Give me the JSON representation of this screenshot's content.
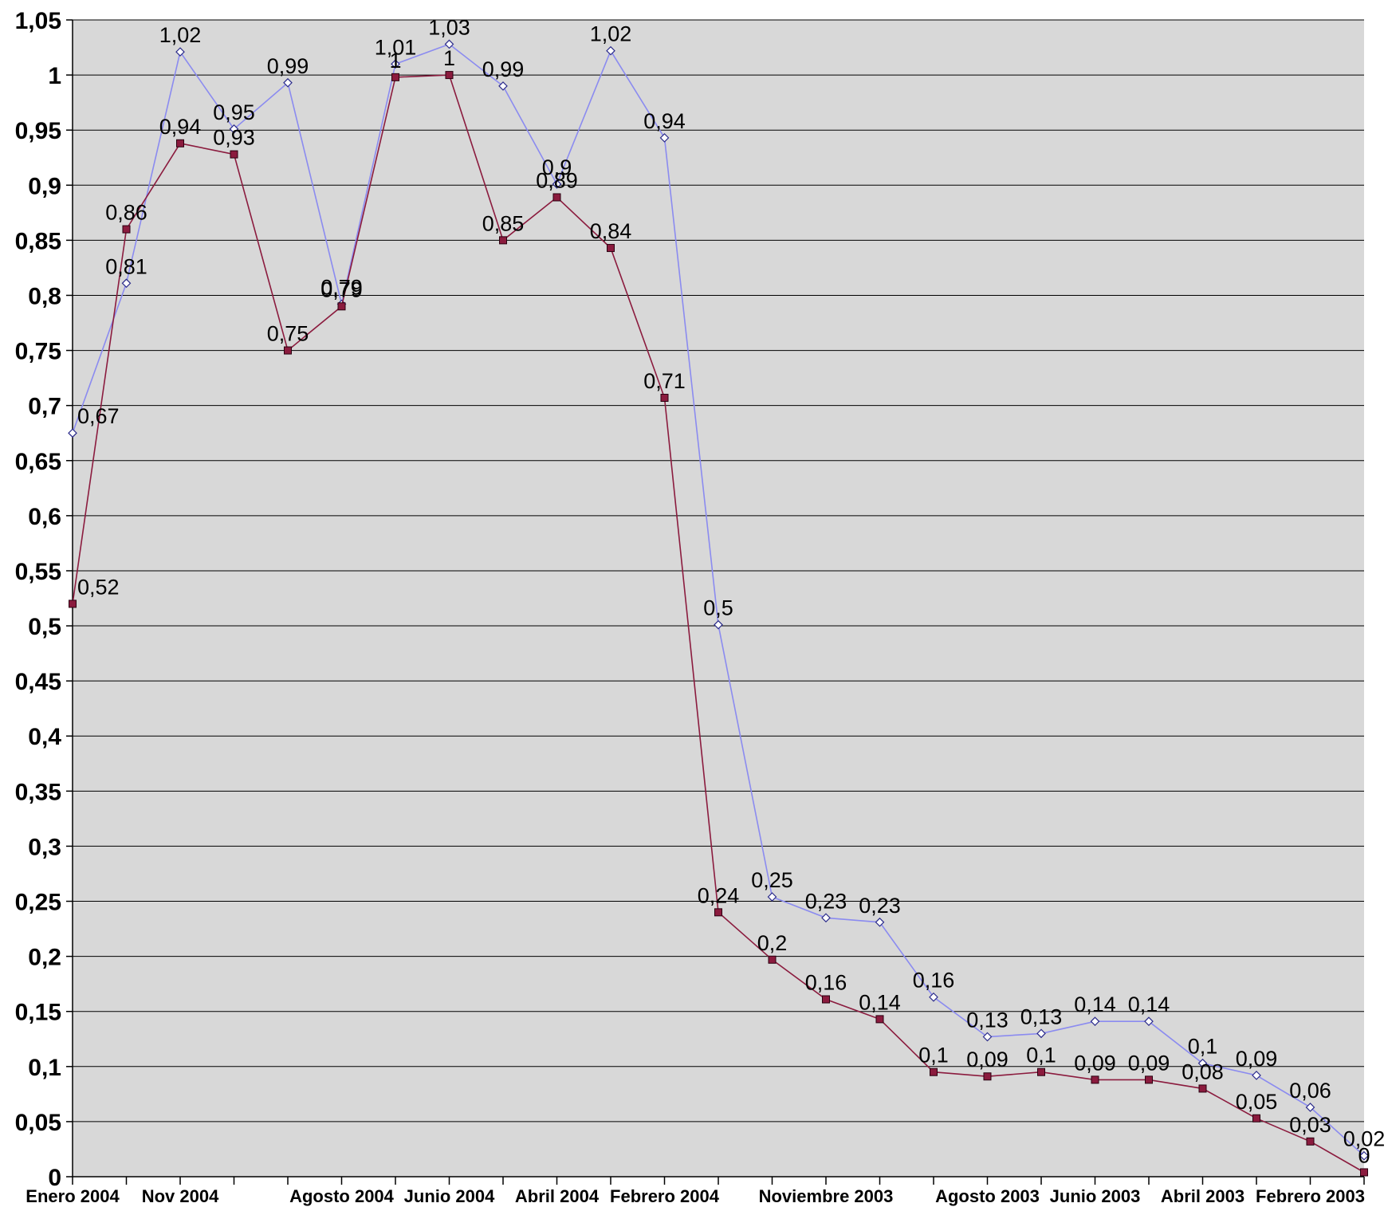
{
  "colors": {
    "plot_background": "#d8d8d8",
    "gridline": "#000000",
    "series_blue": "#8b8bf0",
    "series_red": "#8b1b3e"
  },
  "chart_data": {
    "type": "line",
    "title": "",
    "xlabel": "",
    "ylabel": "",
    "ylim": [
      0,
      1.05
    ],
    "y_ticks": [
      "0",
      "0,05",
      "0,1",
      "0,15",
      "0,2",
      "0,25",
      "0,3",
      "0,35",
      "0,4",
      "0,45",
      "0,5",
      "0,55",
      "0,6",
      "0,65",
      "0,7",
      "0,75",
      "0,8",
      "0,85",
      "0,9",
      "0,95",
      "1",
      "1,05"
    ],
    "x_tick_labels": [
      {
        "index": 0,
        "text": "Enero 2004"
      },
      {
        "index": 2,
        "text": "Nov 2004"
      },
      {
        "index": 5,
        "text": "Agosto 2004"
      },
      {
        "index": 7,
        "text": "Junio 2004"
      },
      {
        "index": 9,
        "text": "Abril 2004"
      },
      {
        "index": 11,
        "text": "Febrero 2004"
      },
      {
        "index": 14,
        "text": "Noviembre 2003"
      },
      {
        "index": 17,
        "text": "Agosto 2003"
      },
      {
        "index": 19,
        "text": "Junio 2003"
      },
      {
        "index": 21,
        "text": "Abril 2003"
      },
      {
        "index": 23,
        "text": "Febrero 2003"
      }
    ],
    "point_count": 25,
    "grid": true,
    "legend": "none",
    "series": [
      {
        "color": "#8b8bf0",
        "marker": "diamond",
        "values": [
          0.675,
          0.811,
          1.021,
          0.951,
          0.993,
          0.792,
          1.01,
          1.028,
          0.99,
          0.901,
          1.022,
          0.943,
          0.501,
          0.254,
          0.235,
          0.231,
          0.163,
          0.127,
          0.13,
          0.141,
          0.141,
          0.103,
          0.092,
          0.063,
          0.019
        ],
        "labels": [
          "0,67",
          "0,81",
          "1,02",
          "0,95",
          "0,99",
          "0,79",
          "1,01",
          "1,03",
          "0,99",
          "0,9",
          "1,02",
          "0,94",
          "0,5",
          "0,25",
          "0,23",
          "0,23",
          "0,16",
          "0,13",
          "0,13",
          "0,14",
          "0,14",
          "0,1",
          "0,09",
          "0,06",
          "0,02"
        ]
      },
      {
        "color": "#8b1b3e",
        "marker": "square",
        "values": [
          0.52,
          0.86,
          0.938,
          0.928,
          0.75,
          0.79,
          0.998,
          1.0,
          0.85,
          0.889,
          0.843,
          0.707,
          0.24,
          0.197,
          0.161,
          0.143,
          0.095,
          0.091,
          0.095,
          0.088,
          0.088,
          0.08,
          0.053,
          0.032,
          0.004
        ],
        "labels": [
          "0,52",
          "0,86",
          "0,94",
          "0,93",
          "0,75",
          "0,79",
          "1",
          "1",
          "0,85",
          "0,89",
          "0,84",
          "0,71",
          "0,24",
          "0,2",
          "0,16",
          "0,14",
          "0,1",
          "0,09",
          "0,1",
          "0,09",
          "0,09",
          "0,08",
          "0,05",
          "0,03",
          "0"
        ]
      }
    ]
  }
}
